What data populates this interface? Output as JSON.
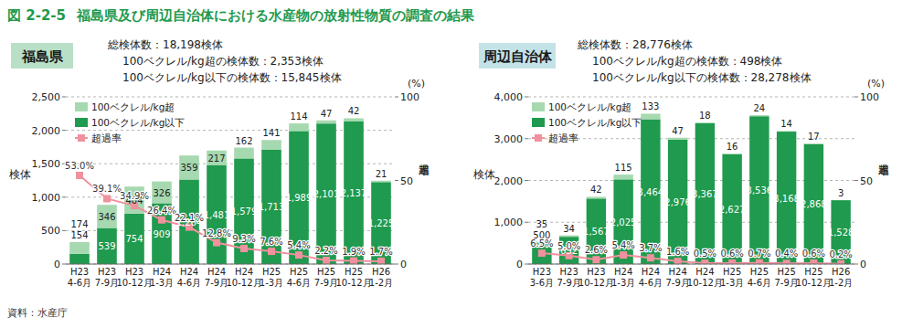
{
  "figure": {
    "number": "図 2-2-5",
    "title": "福島県及び周辺自治体における水産物の放射性物質の調査の結果",
    "source": "資料：水産庁"
  },
  "chart_data": [
    {
      "type": "bar",
      "title": "福島県",
      "stacked": true,
      "grid": true,
      "data_labels": true,
      "legend": "upper left",
      "annotations": [
        "総検体数：18,198検体",
        "100ベクレル/kg超の検体数：2,353検体",
        "100ベクレル/kg以下の検体数：15,845検体"
      ],
      "y_label": "検体",
      "y2_label": "超過率",
      "y2_unit": "(%)",
      "categories": [
        "H23\n4-6月",
        "H23\n7-9月",
        "H23\n10-12月",
        "H24\n1-3月",
        "H24\n4-6月",
        "H24\n7-9月",
        "H24\n10-12月",
        "H25\n1-3月",
        "H25\n4-6月",
        "H25\n7-9月",
        "H25\n10-12月",
        "H26\n1-2月"
      ],
      "ylim": [
        0,
        2500
      ],
      "yticks": [
        0,
        500,
        {
          "value": 1000,
          "label": "1,000"
        },
        {
          "value": 1500,
          "label": "1,500"
        },
        {
          "value": 2000,
          "label": "2,000"
        },
        {
          "value": 2500,
          "label": "2,500"
        }
      ],
      "y2lim": [
        0,
        100
      ],
      "y2ticks": [
        0,
        50,
        100
      ],
      "series": [
        {
          "name": "100ベクレル/kg以下",
          "color": "#1f9a4e",
          "values": [
            154,
            539,
            754,
            909,
            1264,
            1481,
            1579,
            1713,
            1989,
            2101,
            2137,
            1225
          ],
          "value_labels": [
            "154",
            "539",
            "754",
            "909",
            "1,264",
            "1,481",
            "1,579",
            "1,713",
            "1,989",
            "2,101",
            "2,137",
            "1,225"
          ]
        },
        {
          "name": "100ベクレル/kg超",
          "color": "#a6d9b0",
          "values": [
            174,
            346,
            404,
            326,
            359,
            217,
            162,
            141,
            114,
            47,
            42,
            21
          ]
        },
        {
          "name": "超過率",
          "type": "line",
          "axis": "y2",
          "color": "#f0919e",
          "marker": "square",
          "values": [
            53.0,
            39.1,
            34.9,
            26.4,
            22.1,
            12.8,
            9.3,
            7.6,
            5.4,
            2.2,
            1.9,
            1.7
          ],
          "value_labels": [
            "53.0%",
            "39.1%",
            "34.9%",
            "26.4%",
            "22.1%",
            "12.8%",
            "9.3%",
            "7.6%",
            "5.4%",
            "2.2%",
            "1.9%",
            "1.7%"
          ]
        }
      ]
    },
    {
      "type": "bar",
      "title": "周辺自治体",
      "stacked": true,
      "grid": true,
      "data_labels": true,
      "legend": "upper left",
      "annotations": [
        "総検体数：28,776検体",
        "100ベクレル/kg超の検体数：498検体",
        "100ベクレル/kg以下の検体数：28,278検体"
      ],
      "y_label": "検体",
      "y2_label": "超過率",
      "y2_unit": "(%)",
      "categories": [
        "H23\n3-6月",
        "H23\n7-9月",
        "H23\n10-12月",
        "H24\n1-3月",
        "H24\n4-6月",
        "H24\n7-9月",
        "H24\n10-12月",
        "H25\n1-3月",
        "H25\n4-6月",
        "H25\n7-9月",
        "H25\n10-12月",
        "H26\n1-2月"
      ],
      "ylim": [
        0,
        4000
      ],
      "yticks": [
        0,
        {
          "value": 1000,
          "label": "1,000"
        },
        {
          "value": 2000,
          "label": "2,000"
        },
        {
          "value": 3000,
          "label": "3,000"
        },
        {
          "value": 4000,
          "label": "4,000"
        }
      ],
      "y2lim": [
        0,
        100
      ],
      "y2ticks": [
        0,
        50,
        100
      ],
      "series": [
        {
          "name": "100ベクレル/kg以下",
          "color": "#1f9a4e",
          "values": [
            500,
            652,
            1567,
            2025,
            3464,
            2976,
            3367,
            2627,
            3536,
            3168,
            2868,
            1528
          ],
          "value_labels": [
            "500",
            "652",
            "1,567",
            "2,025",
            "3,464",
            "2,976",
            "3,367",
            "2,627",
            "3,536",
            "3,168",
            "2,868",
            "1,528"
          ]
        },
        {
          "name": "100ベクレル/kg超",
          "color": "#a6d9b0",
          "values": [
            35,
            34,
            42,
            115,
            133,
            47,
            18,
            16,
            24,
            14,
            17,
            3
          ]
        },
        {
          "name": "超過率",
          "type": "line",
          "axis": "y2",
          "color": "#f0919e",
          "marker": "square",
          "values": [
            6.5,
            5.0,
            2.6,
            5.4,
            3.7,
            1.6,
            0.5,
            0.6,
            0.7,
            0.4,
            0.6,
            0.2
          ],
          "value_labels": [
            "6.5%",
            "5.0%",
            "2.6%",
            "5.4%",
            "3.7%",
            "1.6%",
            "0.5%",
            "0.6%",
            "0.7%",
            "0.4%",
            "0.6%",
            "0.2%"
          ]
        }
      ]
    }
  ]
}
